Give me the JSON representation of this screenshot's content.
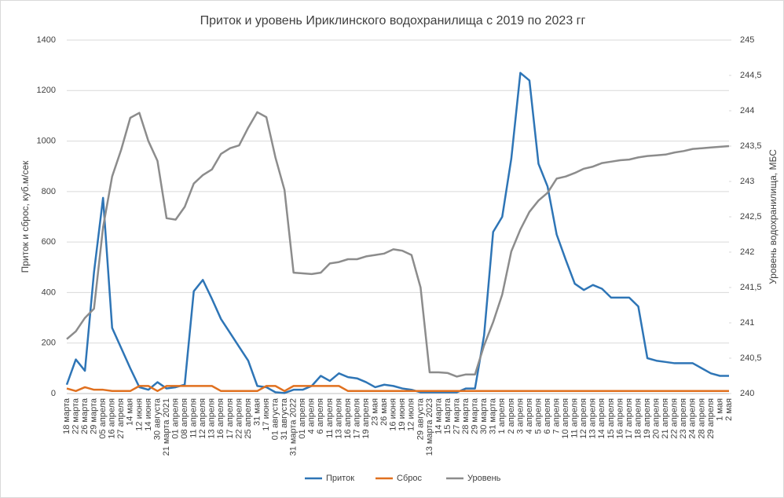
{
  "chart_data": {
    "type": "line",
    "title": "Приток и уровень Ириклинского водохранилища с 2019 по 2023 гг",
    "ylabel": "Приток и сброс, куб.м/сек",
    "y2label": "Уровень водохранилища, МБС",
    "categories": [
      "18 марта",
      "22 марта",
      "26 марта",
      "29 марта",
      "05 апреля",
      "16 апреля",
      "27 апреля",
      "14 мая",
      "12 июня",
      "14 июня",
      "30 августа",
      "21 марта 2021",
      "01 апреля",
      "08 апреля",
      "11 апреля",
      "12 апреля",
      "13 апреля",
      "16 апреля",
      "17 апреля",
      "22 апреля",
      "25 апреля",
      "31 мая",
      "17 июня",
      "01 августа",
      "31 августа",
      "31 марта 2022",
      "01 апреля",
      "4 апреля",
      "6 апреля",
      "11 апреля",
      "13 апреля",
      "16 апреля",
      "17 апреля",
      "19 апреля",
      "23 мая",
      "26 мая",
      "16 июня",
      "19 июня",
      "12 июля",
      "29 августа",
      "13 марта 2023",
      "14 марта",
      "15 марта",
      "27 марта",
      "28 марта",
      "29 марта",
      "30 марта",
      "31 марта",
      "1 апреля",
      "2 апреля",
      "3 апреля",
      "4 апреля",
      "5 апреля",
      "6 апреля",
      "7 апреля",
      "10 апреля",
      "11 апреля",
      "12 апреля",
      "13 апреля",
      "14 апреля",
      "15 апреля",
      "16 апреля",
      "17 апреля",
      "18 апреля",
      "19 апреля",
      "20 апреля",
      "21 апреля",
      "22 апреля",
      "23 апреля",
      "24 апреля",
      "28 апреля",
      "29 апреля",
      "1 мая",
      "2 мая"
    ],
    "series": [
      {
        "name": "Приток",
        "color": "#2e75b6",
        "values": [
          35,
          135,
          90,
          480,
          775,
          260,
          180,
          100,
          25,
          15,
          45,
          20,
          25,
          35,
          405,
          450,
          375,
          295,
          240,
          185,
          130,
          30,
          25,
          5,
          2,
          15,
          15,
          30,
          70,
          50,
          80,
          65,
          60,
          45,
          25,
          35,
          30,
          20,
          15,
          5,
          5,
          5,
          5,
          5,
          20,
          20,
          230,
          640,
          700,
          930,
          1270,
          1240,
          910,
          820,
          630,
          530,
          435,
          410,
          430,
          415,
          380,
          380,
          380,
          345,
          140,
          130,
          125,
          120,
          120,
          120,
          100,
          80,
          70,
          70
        ]
      },
      {
        "name": "Сброс",
        "color": "#e0701f",
        "values": [
          20,
          10,
          25,
          15,
          15,
          10,
          10,
          10,
          30,
          30,
          10,
          30,
          30,
          30,
          30,
          30,
          30,
          10,
          10,
          10,
          10,
          10,
          30,
          30,
          10,
          30,
          30,
          30,
          30,
          30,
          30,
          10,
          10,
          10,
          10,
          10,
          10,
          10,
          10,
          10,
          10,
          10,
          10,
          10,
          10,
          10,
          10,
          10,
          10,
          10,
          10,
          10,
          10,
          10,
          10,
          10,
          10,
          10,
          10,
          10,
          10,
          10,
          10,
          10,
          10,
          10,
          10,
          10,
          10,
          10,
          10,
          10,
          10,
          10
        ]
      },
      {
        "name": "Уровень",
        "color": "#8c8c8c",
        "axis": "y2",
        "values": [
          240.77,
          240.88,
          241.07,
          241.2,
          242.35,
          243.07,
          243.45,
          243.9,
          243.97,
          243.57,
          243.29,
          242.48,
          242.46,
          242.64,
          242.97,
          243.09,
          243.17,
          243.39,
          243.47,
          243.51,
          243.76,
          243.98,
          243.91,
          243.34,
          242.88,
          241.71,
          241.7,
          241.69,
          241.71,
          241.84,
          241.86,
          241.9,
          241.9,
          241.94,
          241.96,
          241.98,
          242.04,
          242.02,
          241.96,
          241.5,
          240.3,
          240.3,
          240.29,
          240.24,
          240.27,
          240.27,
          240.68,
          241.01,
          241.4,
          242.01,
          242.32,
          242.57,
          242.73,
          242.84,
          243.04,
          243.07,
          243.12,
          243.18,
          243.21,
          243.26,
          243.28,
          243.3,
          243.31,
          243.34,
          243.36,
          243.37,
          243.38,
          243.41,
          243.43,
          243.46,
          243.47,
          243.48,
          243.49,
          243.5
        ]
      }
    ],
    "ylim": [
      0,
      1400
    ],
    "yticks": [
      0,
      200,
      400,
      600,
      800,
      1000,
      1200,
      1400
    ],
    "y2lim": [
      240,
      245
    ],
    "y2ticks": [
      240,
      {
        "value": 240.5,
        "label": "240,5"
      },
      241,
      {
        "value": 241.5,
        "label": "241,5"
      },
      242,
      {
        "value": 242.5,
        "label": "242,5"
      },
      243,
      {
        "value": 243.5,
        "label": "243,5"
      },
      244,
      {
        "value": 244.5,
        "label": "244,5"
      },
      245
    ],
    "grid": true,
    "legend": "bottom"
  }
}
